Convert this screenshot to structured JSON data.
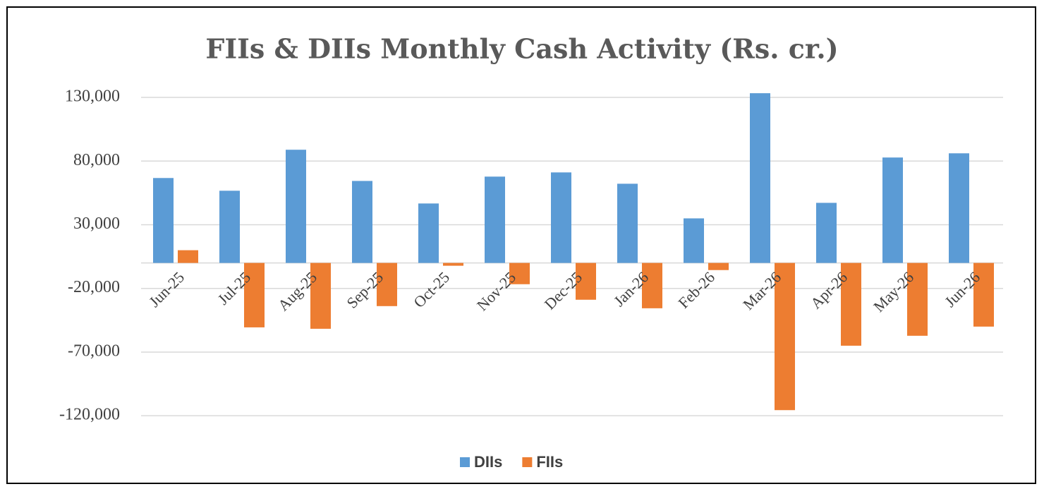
{
  "chart_data": {
    "type": "bar",
    "title": "FIIs & DIIs Monthly Cash Activity (Rs. cr.)",
    "categories": [
      "Jun-25",
      "Jul-25",
      "Aug-25",
      "Sep-25",
      "Oct-25",
      "Nov-25",
      "Dec-25",
      "Jan-26",
      "Feb-26",
      "Mar-26",
      "Apr-26",
      "May-26",
      "Jun-26"
    ],
    "series": [
      {
        "name": "DIIs",
        "color": "#5b9bd5",
        "values": [
          66700,
          56700,
          88900,
          64400,
          46700,
          67800,
          71100,
          62200,
          35000,
          133300,
          47200,
          82800,
          86100
        ]
      },
      {
        "name": "FIIs",
        "color": "#ed7d31",
        "values": [
          10000,
          -50600,
          -51700,
          -33900,
          -2200,
          -16700,
          -28900,
          -35600,
          -5600,
          -115600,
          -65000,
          -57200,
          -50000
        ]
      }
    ],
    "ylim": [
      -126000,
      140000
    ],
    "yticks": [
      {
        "value": 130000,
        "label": "130,000"
      },
      {
        "value": 80000,
        "label": "80,000"
      },
      {
        "value": 30000,
        "label": "30,000"
      },
      {
        "value": -20000,
        "label": "-20,000"
      },
      {
        "value": -70000,
        "label": "-70,000"
      },
      {
        "value": -120000,
        "label": "-120,000"
      }
    ],
    "grid": true,
    "legend": "bottom"
  }
}
